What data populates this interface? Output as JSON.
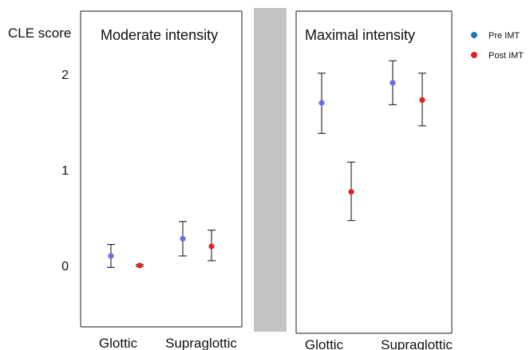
{
  "chart_data": {
    "type": "scatter",
    "ylabel": "CLE score",
    "yticks": [
      0,
      1,
      2
    ],
    "ylim": [
      -0.55,
      2.65
    ],
    "categories": [
      "Glottic",
      "Supraglottic"
    ],
    "legend": {
      "placement": "top-right",
      "entries": [
        {
          "name": "Pre IMT",
          "color": "#1f77b4"
        },
        {
          "name": "Post IMT",
          "color": "#e41a1c"
        }
      ]
    },
    "colors": {
      "pre": "#6b6bf0",
      "post": "#e02525",
      "divider": "#c3c3c3"
    },
    "panels": [
      {
        "title": "Moderate intensity",
        "series": [
          {
            "name": "Pre IMT",
            "points": [
              {
                "category": "Glottic",
                "y": 0.1,
                "low": -0.02,
                "high": 0.22
              },
              {
                "category": "Supraglottic",
                "y": 0.28,
                "low": 0.1,
                "high": 0.46
              }
            ]
          },
          {
            "name": "Post IMT",
            "points": [
              {
                "category": "Glottic",
                "y": 0.0,
                "low": -0.01,
                "high": 0.01
              },
              {
                "category": "Supraglottic",
                "y": 0.2,
                "low": 0.05,
                "high": 0.37
              }
            ]
          }
        ]
      },
      {
        "title": "Maximal intensity",
        "series": [
          {
            "name": "Pre IMT",
            "points": [
              {
                "category": "Glottic",
                "y": 1.7,
                "low": 1.38,
                "high": 2.01
              },
              {
                "category": "Supraglottic",
                "y": 1.91,
                "low": 1.68,
                "high": 2.14
              }
            ]
          },
          {
            "name": "Post IMT",
            "points": [
              {
                "category": "Glottic",
                "y": 0.77,
                "low": 0.47,
                "high": 1.08
              },
              {
                "category": "Supraglottic",
                "y": 1.73,
                "low": 1.46,
                "high": 2.01
              }
            ]
          }
        ]
      }
    ]
  }
}
